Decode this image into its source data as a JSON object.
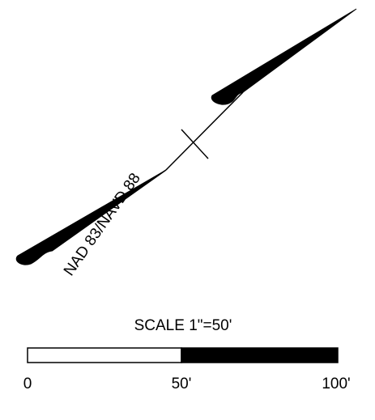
{
  "north_arrow": {
    "label": "NAD 83/NAVD 88"
  },
  "scale": {
    "title": "SCALE 1\"=50'",
    "ticks": [
      "0",
      "50'",
      "100'"
    ],
    "fill_color": "#000000",
    "empty_color": "#ffffff"
  }
}
